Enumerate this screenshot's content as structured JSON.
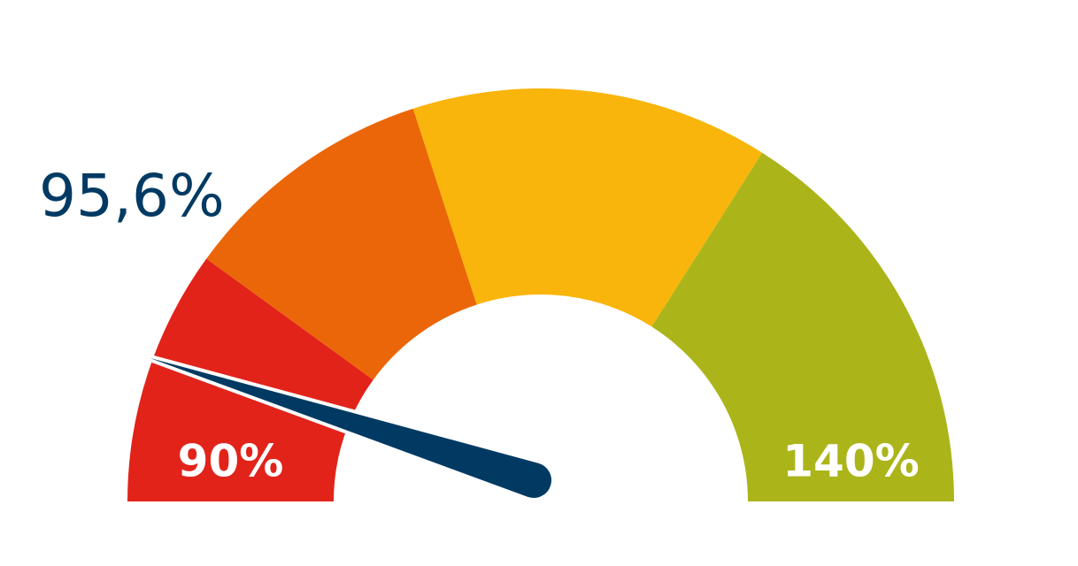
{
  "chart_data": {
    "type": "gauge",
    "values": [
      95.6
    ],
    "value_labels": [
      "95,6%"
    ],
    "needle_color": "#003a63",
    "ylim": [
      90,
      140
    ],
    "yticks": [
      {
        "value": 90,
        "label": "90%"
      },
      {
        "value": 140,
        "label": "140%"
      }
    ],
    "bands": [
      {
        "from": 90,
        "to": 100,
        "color": "#e2231a"
      },
      {
        "from": 100,
        "to": 110,
        "color": "#eb6608"
      },
      {
        "from": 110,
        "to": 124,
        "color": "#f9b50b"
      },
      {
        "from": 124,
        "to": 140,
        "color": "#abb51a"
      }
    ]
  }
}
